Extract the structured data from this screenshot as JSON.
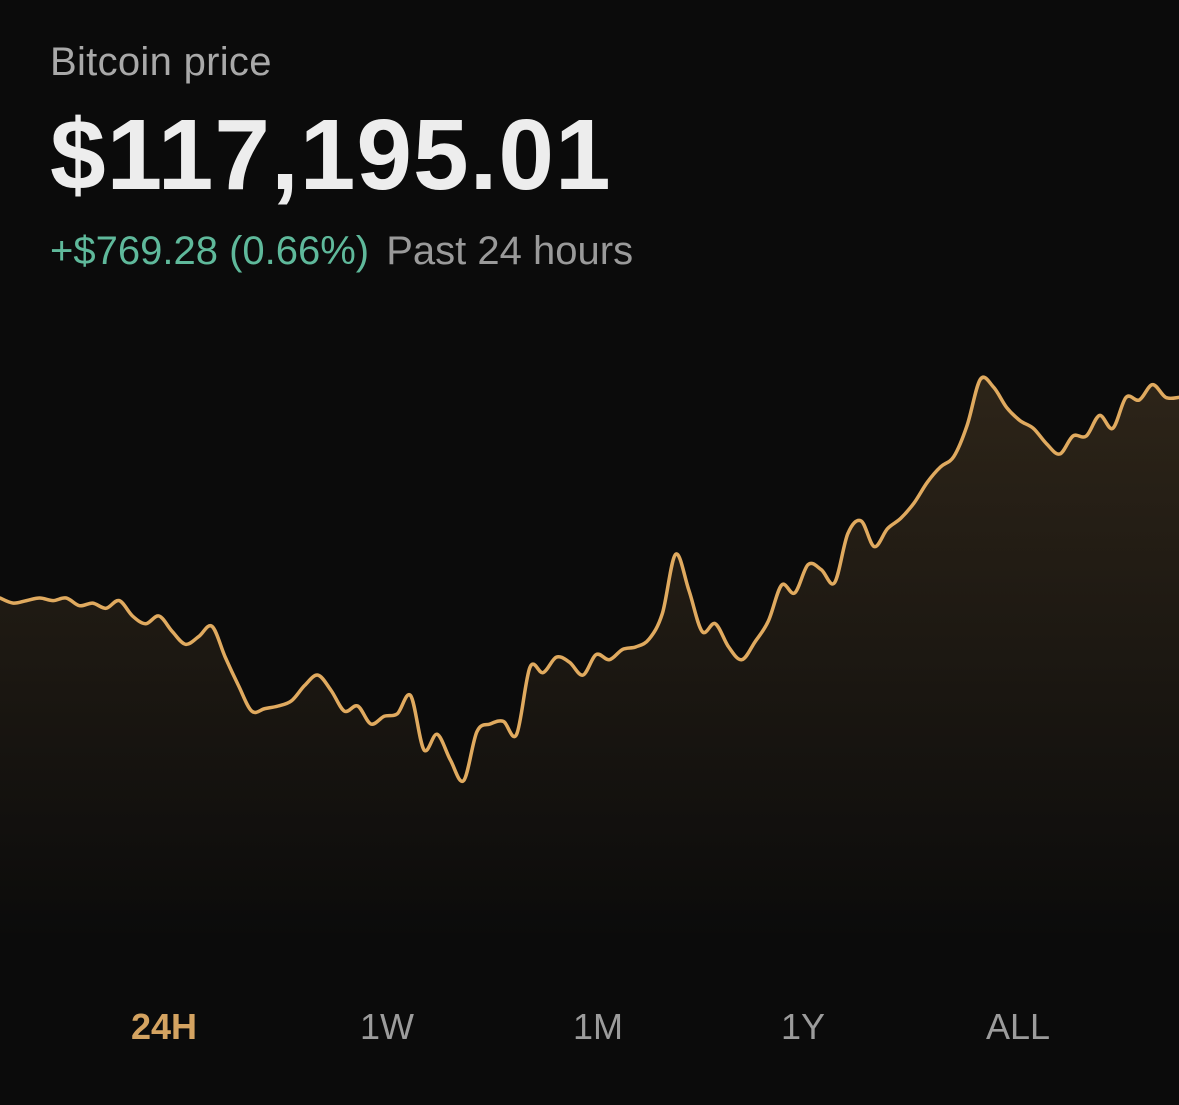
{
  "header": {
    "label": "Bitcoin price",
    "price": "$117,195.01",
    "change": "+$769.28 (0.66%)",
    "period": "Past 24 hours"
  },
  "colors": {
    "background": "#0b0b0b",
    "line": "#e0aa5f",
    "positive": "#5fb99b",
    "muted": "#9c9c9c",
    "active_range": "#d4a361"
  },
  "chart_data": {
    "type": "area",
    "period": "24H",
    "price_samples": [
      116530,
      116510,
      116520,
      116530,
      116520,
      116530,
      116500,
      116510,
      116490,
      116520,
      116460,
      116430,
      116460,
      116400,
      116350,
      116380,
      116420,
      116300,
      116190,
      116090,
      116100,
      116110,
      116130,
      116190,
      116230,
      116170,
      116090,
      116110,
      116040,
      116070,
      116080,
      116150,
      115940,
      116000,
      115900,
      115820,
      116010,
      116040,
      116050,
      116000,
      116260,
      116240,
      116300,
      116280,
      116230,
      116310,
      116290,
      116330,
      116340,
      116370,
      116470,
      116700,
      116560,
      116400,
      116430,
      116340,
      116290,
      116360,
      116440,
      116580,
      116550,
      116660,
      116640,
      116590,
      116780,
      116830,
      116730,
      116800,
      116840,
      116900,
      116980,
      117040,
      117080,
      117200,
      117380,
      117350,
      117270,
      117220,
      117190,
      117130,
      117090,
      117160,
      117160,
      117240,
      117190,
      117310,
      117300,
      117360,
      117310,
      117310
    ]
  },
  "ranges": [
    {
      "label": "24H",
      "active": true
    },
    {
      "label": "1W",
      "active": false
    },
    {
      "label": "1M",
      "active": false
    },
    {
      "label": "1Y",
      "active": false
    },
    {
      "label": "ALL",
      "active": false
    }
  ]
}
